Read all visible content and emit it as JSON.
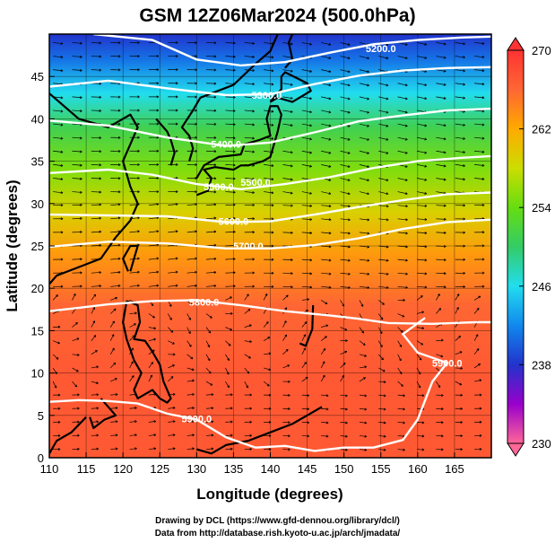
{
  "chart_data": {
    "type": "heatmap",
    "title": "GSM 12Z06Mar2024 (500.0hPa)",
    "xlabel": "Longitude (degrees)",
    "ylabel": "Latitude  (degrees)",
    "xlim": [
      110,
      170
    ],
    "ylim": [
      0,
      50
    ],
    "x_ticks": [
      110,
      115,
      120,
      125,
      130,
      135,
      140,
      145,
      150,
      155,
      160,
      165
    ],
    "y_ticks": [
      0,
      5,
      10,
      15,
      20,
      25,
      30,
      35,
      40,
      45
    ],
    "colorbar": {
      "ticks": [
        270,
        262,
        254,
        246,
        238,
        230
      ],
      "range": [
        230,
        270
      ],
      "colors": [
        "#ff6699",
        "#9900cc",
        "#2233cc",
        "#1188ee",
        "#22ddee",
        "#33cc66",
        "#66dd11",
        "#ccdd00",
        "#ffaa00",
        "#ff6633",
        "#ff3333"
      ]
    },
    "temperature_field": {
      "description_lat_profile": [
        {
          "lat": 0,
          "value": 267
        },
        {
          "lat": 10,
          "value": 267
        },
        {
          "lat": 18,
          "value": 266
        },
        {
          "lat": 24,
          "value": 263
        },
        {
          "lat": 29,
          "value": 259
        },
        {
          "lat": 34,
          "value": 255
        },
        {
          "lat": 39,
          "value": 251
        },
        {
          "lat": 43,
          "value": 246
        },
        {
          "lat": 47,
          "value": 241
        },
        {
          "lat": 50,
          "value": 238
        }
      ]
    },
    "contours": [
      {
        "label": "5200.0",
        "points": [
          [
            116,
            50
          ],
          [
            124,
            49.3
          ],
          [
            130,
            47
          ],
          [
            136,
            46.3
          ],
          [
            142,
            46.7
          ],
          [
            148,
            47.8
          ],
          [
            154,
            48.8
          ],
          [
            160,
            49.3
          ],
          [
            166,
            49.6
          ],
          [
            170,
            49.7
          ]
        ]
      },
      {
        "label": "5300.0",
        "points": [
          [
            110,
            43.8
          ],
          [
            118,
            44.5
          ],
          [
            126,
            43.6
          ],
          [
            134,
            42.8
          ],
          [
            140,
            42.9
          ],
          [
            146,
            44.1
          ],
          [
            152,
            45.1
          ],
          [
            158,
            45.7
          ],
          [
            164,
            46.0
          ],
          [
            170,
            46.1
          ]
        ]
      },
      {
        "label": "5400.0",
        "points": [
          [
            110,
            39.8
          ],
          [
            118,
            39.2
          ],
          [
            126,
            37.8
          ],
          [
            134,
            36.8
          ],
          [
            140,
            37.2
          ],
          [
            146,
            38.4
          ],
          [
            152,
            39.7
          ],
          [
            158,
            40.4
          ],
          [
            164,
            41.0
          ],
          [
            170,
            41.2
          ]
        ]
      },
      {
        "label": "5500.0",
        "points": [
          [
            110,
            33.6
          ],
          [
            118,
            34.0
          ],
          [
            124,
            33.4
          ],
          [
            130,
            32.3
          ],
          [
            136,
            31.7
          ],
          [
            142,
            32.3
          ],
          [
            148,
            33.1
          ],
          [
            154,
            34.2
          ],
          [
            160,
            35.0
          ],
          [
            166,
            35.4
          ],
          [
            170,
            35.6
          ]
        ]
      },
      {
        "label": "5600.0",
        "points": [
          [
            110,
            28.7
          ],
          [
            118,
            28.6
          ],
          [
            126,
            28.5
          ],
          [
            134,
            27.8
          ],
          [
            140,
            27.9
          ],
          [
            146,
            28.7
          ],
          [
            152,
            29.6
          ],
          [
            158,
            30.4
          ],
          [
            164,
            31.1
          ],
          [
            170,
            31.3
          ]
        ]
      },
      {
        "label": "5700.0",
        "points": [
          [
            110,
            24.9
          ],
          [
            118,
            25.5
          ],
          [
            126,
            25.3
          ],
          [
            134,
            24.7
          ],
          [
            140,
            24.7
          ],
          [
            146,
            25.1
          ],
          [
            152,
            25.9
          ],
          [
            158,
            27.0
          ],
          [
            164,
            27.8
          ],
          [
            170,
            28.1
          ]
        ]
      },
      {
        "label": "5800.0",
        "points": [
          [
            110,
            17.3
          ],
          [
            114,
            17.7
          ],
          [
            118,
            18.1
          ],
          [
            124,
            18.5
          ],
          [
            130,
            18.6
          ],
          [
            136,
            18.0
          ],
          [
            142,
            17.3
          ],
          [
            148,
            16.8
          ],
          [
            152,
            16.4
          ],
          [
            156,
            15.9
          ],
          [
            162,
            15.8
          ],
          [
            168,
            16.0
          ],
          [
            170,
            16.0
          ]
        ]
      },
      {
        "label": "5900.0",
        "points": [
          [
            110,
            6.6
          ],
          [
            114,
            6.8
          ],
          [
            118,
            6.7
          ],
          [
            122,
            6.4
          ],
          [
            126,
            5.2
          ],
          [
            130,
            4.5
          ],
          [
            134,
            2.4
          ],
          [
            138,
            1.2
          ],
          [
            142,
            1.4
          ],
          [
            146,
            0.8
          ],
          [
            150,
            1.2
          ],
          [
            154,
            1.2
          ],
          [
            158,
            2.1
          ],
          [
            160,
            4.5
          ],
          [
            162,
            9.0
          ],
          [
            164,
            11.2
          ],
          [
            160,
            12.4
          ],
          [
            158,
            14.6
          ],
          [
            161,
            16.5
          ]
        ]
      }
    ],
    "contour_labels": [
      "5200.0",
      "5300.0",
      "5400.0",
      "5500.0",
      "5500.0",
      "5600.0",
      "5700.0",
      "5800.0",
      "5900.0",
      "5900.0"
    ]
  },
  "footer": {
    "line1": "Drawing by DCL (https://www.gfd-dennou.org/library/dcl/)",
    "line2": "Data from http://database.rish.kyoto-u.ac.jp/arch/jmadata/"
  }
}
